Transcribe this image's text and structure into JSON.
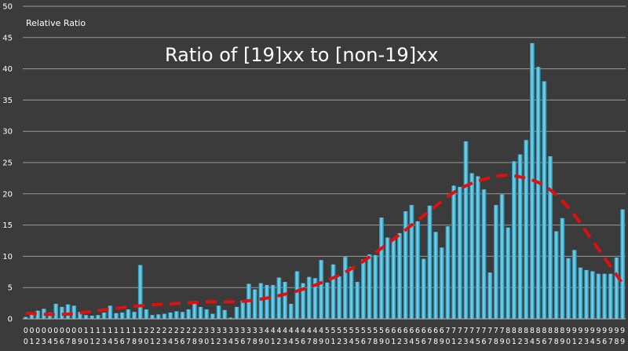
{
  "chart_data": {
    "type": "bar",
    "title": "Ratio of [19]xx to [non-19]xx",
    "ylabel": "Relative Ratio",
    "xlabel": "",
    "ylim": [
      0,
      50
    ],
    "ytick_step": 5,
    "grid": true,
    "categories": [
      "00",
      "01",
      "02",
      "03",
      "04",
      "05",
      "06",
      "07",
      "08",
      "09",
      "10",
      "11",
      "12",
      "13",
      "14",
      "15",
      "16",
      "17",
      "18",
      "19",
      "20",
      "21",
      "22",
      "23",
      "24",
      "25",
      "26",
      "27",
      "28",
      "29",
      "30",
      "31",
      "32",
      "33",
      "34",
      "35",
      "36",
      "37",
      "38",
      "39",
      "40",
      "41",
      "42",
      "43",
      "44",
      "45",
      "46",
      "47",
      "48",
      "49",
      "50",
      "51",
      "52",
      "53",
      "54",
      "55",
      "56",
      "57",
      "58",
      "59",
      "60",
      "61",
      "62",
      "63",
      "64",
      "65",
      "66",
      "67",
      "68",
      "69",
      "70",
      "71",
      "72",
      "73",
      "74",
      "75",
      "76",
      "77",
      "78",
      "79",
      "80",
      "81",
      "82",
      "83",
      "84",
      "85",
      "86",
      "87",
      "88",
      "89",
      "90",
      "91",
      "92",
      "93",
      "94",
      "95",
      "96",
      "97",
      "98",
      "99"
    ],
    "values": [
      0.3,
      0.8,
      1.3,
      1.6,
      1.0,
      2.4,
      1.9,
      2.3,
      2.1,
      1.1,
      0.6,
      0.5,
      0.6,
      1.0,
      2.1,
      0.9,
      1.0,
      1.5,
      1.1,
      8.6,
      1.5,
      0.6,
      0.7,
      0.8,
      1.0,
      1.2,
      1.1,
      1.5,
      2.6,
      1.9,
      1.5,
      0.8,
      2.1,
      1.4,
      0.2,
      1.9,
      2.9,
      5.6,
      4.7,
      5.7,
      5.4,
      5.4,
      6.6,
      5.9,
      2.4,
      7.6,
      5.7,
      6.7,
      6.5,
      9.4,
      5.8,
      8.7,
      6.8,
      9.9,
      8.3,
      5.9,
      9.5,
      10.3,
      10.2,
      16.2,
      13.0,
      12.8,
      13.7,
      17.2,
      18.2,
      15.6,
      9.6,
      18.1,
      13.9,
      11.4,
      14.8,
      21.3,
      21.1,
      28.4,
      23.3,
      22.8,
      20.7,
      7.4,
      18.2,
      19.9,
      14.6,
      25.2,
      26.3,
      28.6,
      44.1,
      40.3,
      38.0,
      26.0,
      14.0,
      16.1,
      9.7,
      11.0,
      8.2,
      7.8,
      7.6,
      7.2,
      7.2,
      7.2,
      9.8,
      17.5
    ],
    "series": [
      {
        "type": "trend",
        "style": "dashed",
        "color": "#e01010",
        "x": [
          0,
          6,
          12,
          18,
          24,
          30,
          36,
          42,
          48,
          54,
          60,
          66,
          72,
          78,
          82,
          86,
          90,
          94,
          99
        ],
        "values": [
          0.9,
          0.7,
          1.3,
          2.0,
          2.4,
          2.7,
          2.8,
          3.7,
          5.4,
          8.0,
          12.0,
          16.5,
          20.8,
          22.8,
          22.7,
          21.3,
          17.8,
          12.5,
          5.6
        ]
      }
    ],
    "colors": {
      "bar": "#2aa6c9",
      "bar_highlight": "#7fd7ee",
      "background": "#3b3b3b",
      "grid": "#9a9a9a",
      "text": "#ffffff",
      "trend": "#e01010"
    }
  }
}
